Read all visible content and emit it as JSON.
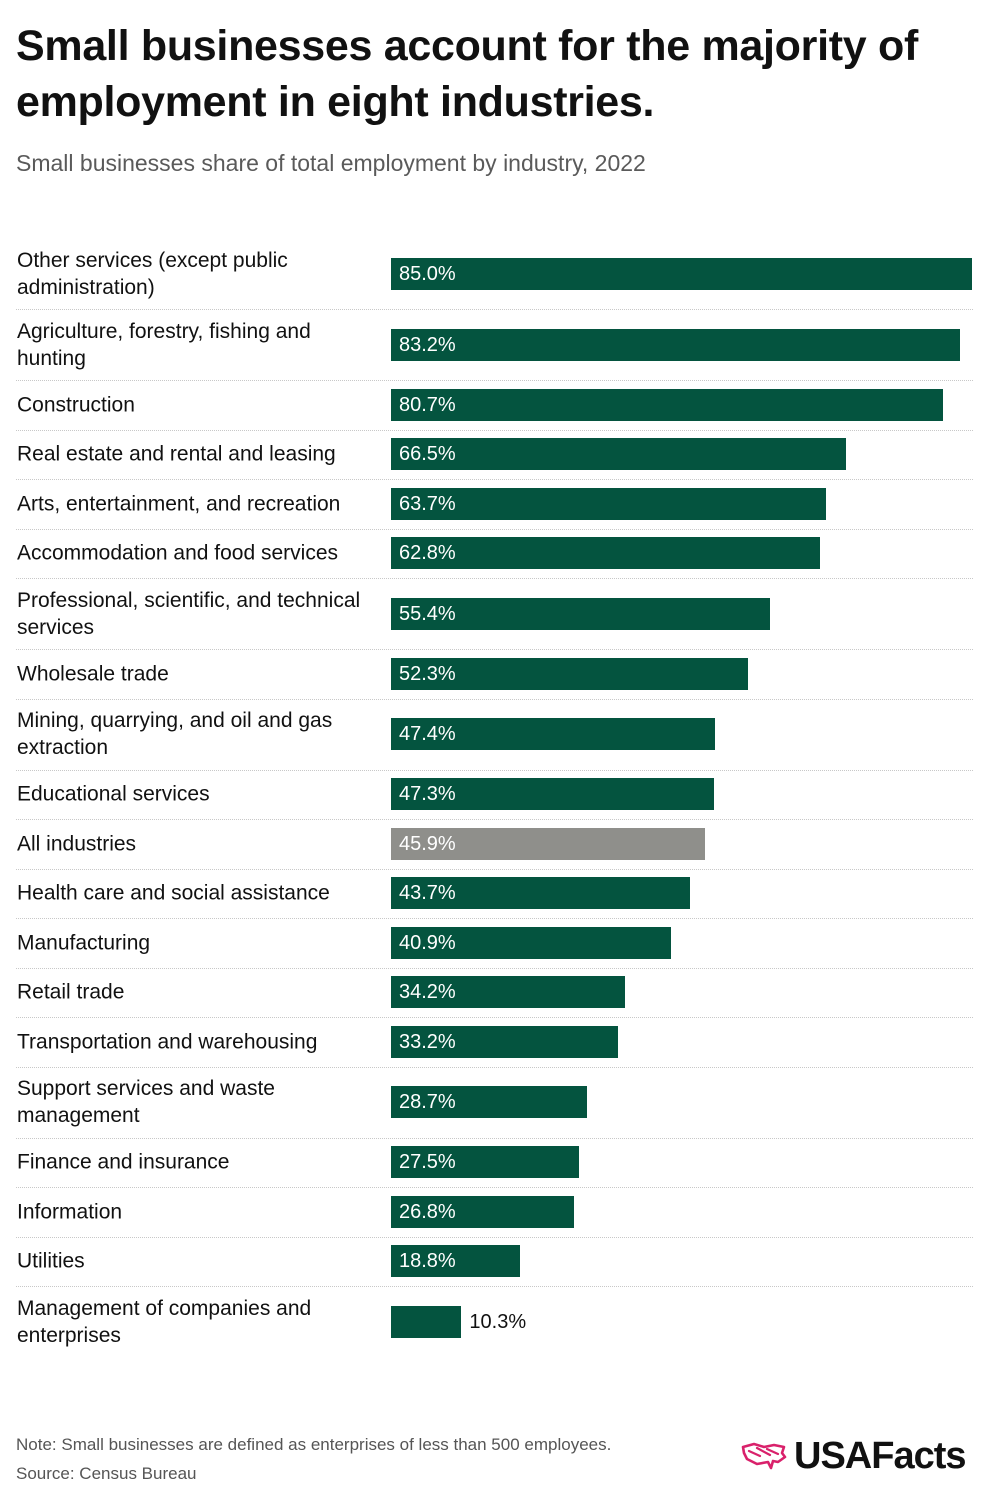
{
  "title": "Small businesses account for the majority of employment in eight industries.",
  "subtitle": "Small businesses share of total employment by industry, 2022",
  "chart_data": {
    "type": "bar",
    "orientation": "horizontal",
    "title": "Small businesses account for the majority of employment in eight industries.",
    "subtitle": "Small businesses share of total employment by industry, 2022",
    "xlim": [
      0,
      85
    ],
    "unit": "%",
    "grid": false,
    "categories": [
      "Other services (except public administration)",
      "Agriculture, forestry, fishing and hunting",
      "Construction",
      "Real estate and rental and leasing",
      "Arts, entertainment, and recreation",
      "Accommodation and food services",
      "Professional, scientific, and technical services",
      "Wholesale trade",
      "Mining, quarrying, and oil and gas extraction",
      "Educational services",
      "All industries",
      "Health care and social assistance",
      "Manufacturing",
      "Retail trade",
      "Transportation and warehousing",
      "Support services and waste management",
      "Finance and insurance",
      "Information",
      "Utilities",
      "Management of companies and enterprises"
    ],
    "values": [
      85.0,
      83.2,
      80.7,
      66.5,
      63.7,
      62.8,
      55.4,
      52.3,
      47.4,
      47.3,
      45.9,
      43.7,
      40.9,
      34.2,
      33.2,
      28.7,
      27.5,
      26.8,
      18.8,
      10.3
    ],
    "value_labels": [
      "85.0%",
      "83.2%",
      "80.7%",
      "66.5%",
      "63.7%",
      "62.8%",
      "55.4%",
      "52.3%",
      "47.4%",
      "47.3%",
      "45.9%",
      "43.7%",
      "40.9%",
      "34.2%",
      "33.2%",
      "28.7%",
      "27.5%",
      "26.8%",
      "18.8%",
      "10.3%"
    ],
    "highlight_category": "All industries",
    "colors": {
      "bar": "#04543f",
      "highlight": "#8f8f8b"
    }
  },
  "footer": {
    "note": "Note: Small businesses are defined as enterprises of less than 500 employees.",
    "source": "Source: Census Bureau"
  },
  "brand": {
    "name": "USAFacts",
    "logo_icon": "usa-map-icon",
    "accent": "#d9216b"
  }
}
